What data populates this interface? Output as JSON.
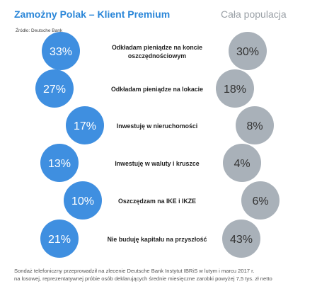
{
  "header": {
    "left_title": "Zamożny Polak – Klient Premium",
    "right_title": "Cała populacja",
    "source": "Źródło: Deutsche Bank"
  },
  "chart_data": {
    "type": "table",
    "series": [
      {
        "name": "Zamożny Polak – Klient Premium",
        "color": "#3f8fe0",
        "values": [
          "33%",
          "27%",
          "17%",
          "13%",
          "10%",
          "21%"
        ]
      },
      {
        "name": "Cała populacja",
        "color": "#a9b1b9",
        "values": [
          "30%",
          "18%",
          "8%",
          "4%",
          "6%",
          "43%"
        ]
      }
    ],
    "categories": [
      [
        "Odkładam pieniądze na koncie",
        "oszczędnościowym"
      ],
      [
        "Odkładam pieniądze na lokacie"
      ],
      [
        "Inwestuję w nieruchomości"
      ],
      [
        "Inwestuję w waluty i kruszce"
      ],
      [
        "Oszczędzam na IKE i IKZE"
      ],
      [
        "Nie buduję kapitału na przyszłość"
      ]
    ]
  },
  "footnote": {
    "line1": "Sondaż telefoniczny przeprowadził na zlecenie Deutsche Bank Instytut IBRiS w lutym i marcu 2017 r.",
    "line2": "na losowej, reprezentatywnej próbie osób deklarujących średnie miesięczne zarobki powyżej 7,5 tys. zł netto"
  }
}
